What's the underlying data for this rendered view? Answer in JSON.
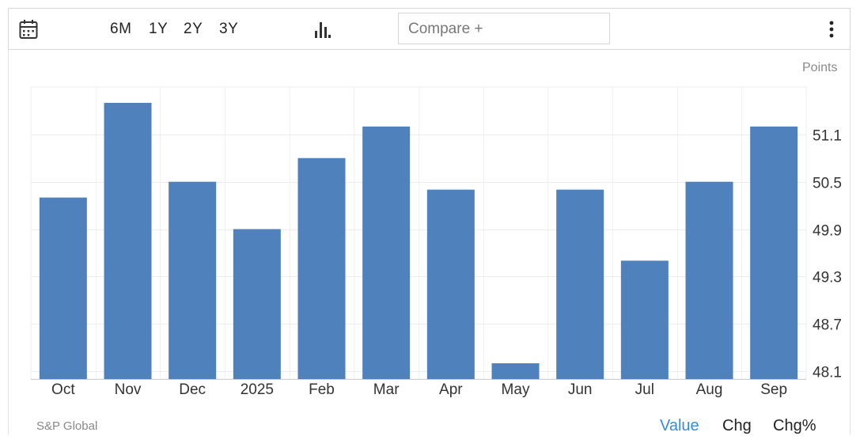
{
  "toolbar": {
    "ranges": [
      "6M",
      "1Y",
      "2Y",
      "3Y"
    ],
    "compare_label": "Compare +",
    "icons": {
      "calendar": "calendar-icon",
      "chart_type": "bar-chart-icon",
      "more": "more-vertical-icon"
    }
  },
  "unit_label": "Points",
  "source": "S&P Global",
  "view_tabs": {
    "value": "Value",
    "chg": "Chg",
    "chg_pct": "Chg%",
    "active": "value"
  },
  "colors": {
    "bar": "#4f81bd",
    "active_tab": "#2f8ee0",
    "grid": "#ececec"
  },
  "chart_data": {
    "type": "bar",
    "categories": [
      "Oct",
      "Nov",
      "Dec",
      "2025",
      "Feb",
      "Mar",
      "Apr",
      "May",
      "Jun",
      "Jul",
      "Aug",
      "Sep"
    ],
    "values": [
      50.3,
      51.5,
      50.5,
      49.9,
      50.8,
      51.2,
      50.4,
      48.2,
      50.4,
      49.5,
      50.5,
      51.2
    ],
    "y_ticks": [
      "48.1",
      "48.7",
      "49.3",
      "49.9",
      "50.5",
      "51.1"
    ],
    "ylim": [
      48.0,
      51.7
    ],
    "grid": true,
    "y_axis_side": "right"
  }
}
